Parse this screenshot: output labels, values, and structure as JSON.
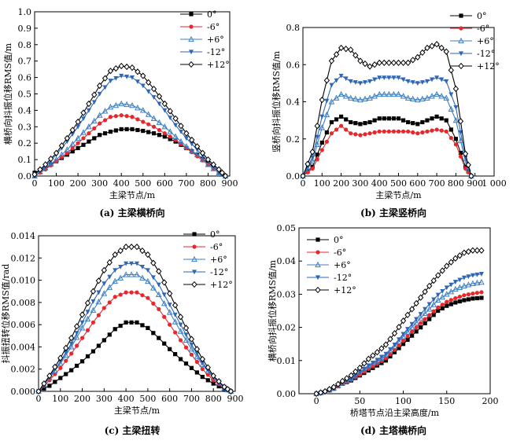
{
  "series_styles": [
    {
      "name": "0°",
      "color": "#000000",
      "marker": "square"
    },
    {
      "name": "-6°",
      "color": "#e8262b",
      "marker": "circle"
    },
    {
      "name": "+6°",
      "color": "#3d7fc4",
      "marker": "triangle-up"
    },
    {
      "name": "-12°",
      "color": "#2e66b8",
      "marker": "triangle-down"
    },
    {
      "name": "+12°",
      "color": "#000000",
      "marker": "diamond-open"
    }
  ],
  "chart_data": [
    {
      "id": "a",
      "type": "line",
      "caption": "(a) 主梁横桥向",
      "xlabel": "主梁节点/m",
      "ylabel": "横桥向抖振位移RMS值/m",
      "xlim": [
        0,
        900
      ],
      "ylim": [
        0,
        1.0
      ],
      "xticks": [
        0,
        100,
        200,
        300,
        400,
        500,
        600,
        700,
        800,
        900
      ],
      "yticks": [
        0.0,
        0.1,
        0.2,
        0.3,
        0.4,
        0.5,
        0.6,
        0.7,
        0.8,
        0.9,
        1.0
      ],
      "ytick_labels": [
        "0.0",
        "0.1",
        "0.2",
        "0.3",
        "0.4",
        "0.5",
        "0.6",
        "0.7",
        "0.8",
        "0.9",
        "1.0"
      ],
      "legend": [
        "0°",
        "-6°",
        "+6°",
        "-12°",
        "+12°"
      ],
      "series": [
        {
          "name": "0°",
          "x": [
            0,
            50,
            100,
            150,
            200,
            250,
            300,
            350,
            400,
            450,
            500,
            550,
            600,
            650,
            700,
            750,
            800,
            850,
            880
          ],
          "y": [
            0.02,
            0.05,
            0.09,
            0.13,
            0.17,
            0.21,
            0.25,
            0.27,
            0.285,
            0.285,
            0.275,
            0.26,
            0.24,
            0.21,
            0.17,
            0.13,
            0.08,
            0.03,
            0.0
          ]
        },
        {
          "name": "-6°",
          "x": [
            0,
            50,
            100,
            150,
            200,
            250,
            300,
            350,
            400,
            450,
            500,
            550,
            600,
            650,
            700,
            750,
            800,
            850,
            880
          ],
          "y": [
            0.0,
            0.04,
            0.09,
            0.14,
            0.2,
            0.26,
            0.32,
            0.36,
            0.37,
            0.36,
            0.33,
            0.3,
            0.26,
            0.22,
            0.17,
            0.12,
            0.07,
            0.02,
            0.0
          ]
        },
        {
          "name": "+6°",
          "x": [
            0,
            50,
            100,
            150,
            200,
            250,
            300,
            350,
            400,
            450,
            500,
            550,
            600,
            650,
            700,
            750,
            800,
            850,
            880
          ],
          "y": [
            0.0,
            0.05,
            0.1,
            0.16,
            0.23,
            0.3,
            0.37,
            0.42,
            0.44,
            0.43,
            0.4,
            0.35,
            0.3,
            0.24,
            0.18,
            0.13,
            0.07,
            0.02,
            0.0
          ]
        },
        {
          "name": "-12°",
          "x": [
            0,
            50,
            100,
            150,
            200,
            250,
            300,
            350,
            400,
            450,
            500,
            550,
            600,
            650,
            700,
            750,
            800,
            850,
            880
          ],
          "y": [
            0.01,
            0.06,
            0.13,
            0.21,
            0.3,
            0.4,
            0.5,
            0.58,
            0.61,
            0.6,
            0.55,
            0.48,
            0.4,
            0.31,
            0.23,
            0.16,
            0.09,
            0.03,
            0.0
          ]
        },
        {
          "name": "+12°",
          "x": [
            0,
            50,
            100,
            150,
            200,
            250,
            300,
            350,
            400,
            450,
            500,
            550,
            600,
            650,
            700,
            750,
            800,
            850,
            880
          ],
          "y": [
            0.01,
            0.07,
            0.14,
            0.23,
            0.33,
            0.44,
            0.55,
            0.64,
            0.67,
            0.66,
            0.61,
            0.53,
            0.44,
            0.35,
            0.26,
            0.18,
            0.1,
            0.04,
            0.0
          ]
        }
      ]
    },
    {
      "id": "b",
      "type": "line",
      "caption": "(b) 主梁竖桥向",
      "xlabel": "主梁节点/m",
      "ylabel": "竖桥向抖振位移RMS值/m",
      "xlim": [
        0,
        1000
      ],
      "ylim": [
        0,
        0.8
      ],
      "xticks": [
        0,
        100,
        200,
        300,
        400,
        500,
        600,
        700,
        800,
        900,
        1000
      ],
      "xtick_labels": [
        "0",
        "100",
        "200",
        "300",
        "400",
        "500",
        "600",
        "700",
        "800",
        "900",
        "1 000"
      ],
      "yticks": [
        0.0,
        0.2,
        0.4,
        0.6,
        0.8
      ],
      "ytick_labels": [
        "0.0",
        "0.2",
        "0.4",
        "0.6",
        "0.8"
      ],
      "legend": [
        "0°",
        "-6°",
        "+6°",
        "-12°",
        "+12°"
      ],
      "series": [
        {
          "name": "0°",
          "x": [
            0,
            50,
            100,
            150,
            200,
            250,
            300,
            350,
            400,
            450,
            500,
            550,
            600,
            650,
            700,
            750,
            800,
            850,
            880
          ],
          "y": [
            0.0,
            0.05,
            0.18,
            0.29,
            0.32,
            0.29,
            0.28,
            0.29,
            0.31,
            0.31,
            0.31,
            0.29,
            0.28,
            0.3,
            0.32,
            0.3,
            0.2,
            0.05,
            0.0
          ]
        },
        {
          "name": "-6°",
          "x": [
            0,
            50,
            100,
            150,
            200,
            250,
            300,
            350,
            400,
            450,
            500,
            550,
            600,
            650,
            700,
            750,
            800,
            850,
            880
          ],
          "y": [
            0.0,
            0.04,
            0.14,
            0.23,
            0.27,
            0.23,
            0.22,
            0.23,
            0.24,
            0.24,
            0.24,
            0.24,
            0.23,
            0.24,
            0.25,
            0.24,
            0.17,
            0.04,
            0.0
          ]
        },
        {
          "name": "+6°",
          "x": [
            0,
            50,
            100,
            150,
            200,
            250,
            300,
            350,
            400,
            450,
            500,
            550,
            600,
            650,
            700,
            750,
            800,
            850,
            880
          ],
          "y": [
            0.0,
            0.08,
            0.26,
            0.4,
            0.44,
            0.42,
            0.41,
            0.42,
            0.44,
            0.44,
            0.44,
            0.42,
            0.41,
            0.42,
            0.44,
            0.42,
            0.3,
            0.08,
            0.0
          ]
        },
        {
          "name": "-12°",
          "x": [
            0,
            50,
            100,
            150,
            200,
            250,
            300,
            350,
            400,
            450,
            500,
            550,
            600,
            650,
            700,
            750,
            800,
            850,
            880
          ],
          "y": [
            0.0,
            0.1,
            0.32,
            0.49,
            0.54,
            0.51,
            0.5,
            0.51,
            0.53,
            0.53,
            0.53,
            0.51,
            0.5,
            0.51,
            0.53,
            0.51,
            0.37,
            0.1,
            0.0
          ]
        },
        {
          "name": "+12°",
          "x": [
            0,
            50,
            100,
            150,
            200,
            250,
            300,
            350,
            400,
            450,
            500,
            550,
            600,
            650,
            700,
            750,
            800,
            850,
            880
          ],
          "y": [
            0.0,
            0.13,
            0.41,
            0.62,
            0.69,
            0.68,
            0.62,
            0.59,
            0.61,
            0.61,
            0.61,
            0.61,
            0.64,
            0.69,
            0.71,
            0.67,
            0.47,
            0.12,
            0.0
          ]
        }
      ]
    },
    {
      "id": "c",
      "type": "line",
      "caption": "(c) 主梁扭转",
      "xlabel": "主梁节点/m",
      "ylabel": "抖振扭转位移RMS值/rad",
      "xlim": [
        0,
        900
      ],
      "ylim": [
        0,
        0.014
      ],
      "xticks": [
        0,
        100,
        200,
        300,
        400,
        500,
        600,
        700,
        800,
        900
      ],
      "yticks": [
        0,
        0.002,
        0.004,
        0.006,
        0.008,
        0.01,
        0.012,
        0.014
      ],
      "ytick_labels": [
        "0.000",
        "0.002",
        "0.004",
        "0.006",
        "0.008",
        "0.010",
        "0.012",
        "0.014"
      ],
      "legend": [
        "0°",
        "-6°",
        "+6°",
        "-12°",
        "+12°"
      ],
      "series": [
        {
          "name": "0°",
          "x": [
            0,
            50,
            100,
            150,
            200,
            250,
            300,
            350,
            400,
            450,
            500,
            550,
            600,
            650,
            700,
            750,
            800,
            850,
            880
          ],
          "y": [
            0.0,
            0.0005,
            0.0012,
            0.0019,
            0.0027,
            0.0036,
            0.0046,
            0.0056,
            0.0062,
            0.0062,
            0.0057,
            0.0048,
            0.0038,
            0.0029,
            0.0021,
            0.0013,
            0.0007,
            0.0002,
            0.0
          ]
        },
        {
          "name": "-6°",
          "x": [
            0,
            50,
            100,
            150,
            200,
            250,
            300,
            350,
            400,
            450,
            500,
            550,
            600,
            650,
            700,
            750,
            800,
            850,
            880
          ],
          "y": [
            0.0,
            0.001,
            0.0021,
            0.0034,
            0.0048,
            0.0062,
            0.0075,
            0.0085,
            0.0089,
            0.0089,
            0.0084,
            0.0074,
            0.006,
            0.0046,
            0.0033,
            0.002,
            0.001,
            0.0003,
            0.0
          ]
        },
        {
          "name": "+6°",
          "x": [
            0,
            50,
            100,
            150,
            200,
            250,
            300,
            350,
            400,
            450,
            500,
            550,
            600,
            650,
            700,
            750,
            800,
            850,
            880
          ],
          "y": [
            0.0,
            0.0012,
            0.0025,
            0.004,
            0.0057,
            0.0073,
            0.0088,
            0.0099,
            0.0105,
            0.0105,
            0.0099,
            0.0087,
            0.0071,
            0.0054,
            0.0038,
            0.0024,
            0.0012,
            0.0003,
            0.0
          ]
        },
        {
          "name": "-12°",
          "x": [
            0,
            50,
            100,
            150,
            200,
            250,
            300,
            350,
            400,
            450,
            500,
            550,
            600,
            650,
            700,
            750,
            800,
            850,
            880
          ],
          "y": [
            0.0,
            0.0013,
            0.0027,
            0.0043,
            0.0062,
            0.0081,
            0.0097,
            0.0109,
            0.0115,
            0.0115,
            0.0109,
            0.0096,
            0.0078,
            0.006,
            0.0042,
            0.0026,
            0.0013,
            0.0004,
            0.0
          ]
        },
        {
          "name": "+12°",
          "x": [
            0,
            50,
            100,
            150,
            200,
            250,
            300,
            350,
            400,
            450,
            500,
            550,
            600,
            650,
            700,
            750,
            800,
            850,
            880
          ],
          "y": [
            0.0,
            0.0014,
            0.003,
            0.0048,
            0.0069,
            0.009,
            0.0109,
            0.0123,
            0.013,
            0.013,
            0.0123,
            0.0108,
            0.0088,
            0.0067,
            0.0047,
            0.0029,
            0.0014,
            0.0004,
            0.0
          ]
        }
      ]
    },
    {
      "id": "d",
      "type": "line",
      "caption": "(d) 主塔横桥向",
      "xlabel": "桥塔节点沿主梁高度/m",
      "ylabel": "横桥向抖振位移RMS值/m",
      "xlim": [
        -20,
        200
      ],
      "ylim": [
        0,
        0.05
      ],
      "xticks": [
        0,
        50,
        100,
        150,
        200
      ],
      "yticks": [
        0,
        0.01,
        0.02,
        0.03,
        0.04,
        0.05
      ],
      "ytick_labels": [
        "0.00",
        "0.01",
        "0.02",
        "0.03",
        "0.04",
        "0.05"
      ],
      "legend": [
        "0°",
        "-6°",
        "+6°",
        "-12°",
        "+12°"
      ],
      "series": [
        {
          "name": "0°",
          "x": [
            0,
            10,
            20,
            30,
            40,
            50,
            60,
            70,
            80,
            90,
            100,
            110,
            120,
            130,
            140,
            150,
            160,
            170,
            180,
            190
          ],
          "y": [
            0.0,
            0.0005,
            0.0015,
            0.003,
            0.004,
            0.0055,
            0.007,
            0.0085,
            0.01,
            0.0125,
            0.015,
            0.0175,
            0.02,
            0.0225,
            0.025,
            0.0265,
            0.0275,
            0.0282,
            0.0287,
            0.0289
          ]
        },
        {
          "name": "-6°",
          "x": [
            0,
            10,
            20,
            30,
            40,
            50,
            60,
            70,
            80,
            90,
            100,
            110,
            120,
            130,
            140,
            150,
            160,
            170,
            180,
            190
          ],
          "y": [
            0.0,
            0.0005,
            0.0015,
            0.003,
            0.0042,
            0.0058,
            0.0075,
            0.009,
            0.0107,
            0.0132,
            0.016,
            0.0187,
            0.0213,
            0.0237,
            0.026,
            0.0277,
            0.0288,
            0.0297,
            0.0302,
            0.0306
          ]
        },
        {
          "name": "+6°",
          "x": [
            0,
            10,
            20,
            30,
            40,
            50,
            60,
            70,
            80,
            90,
            100,
            110,
            120,
            130,
            140,
            150,
            160,
            170,
            180,
            190
          ],
          "y": [
            0.0,
            0.0006,
            0.0017,
            0.0032,
            0.0045,
            0.0062,
            0.0082,
            0.0098,
            0.0115,
            0.0142,
            0.0172,
            0.02,
            0.0228,
            0.0255,
            0.0282,
            0.03,
            0.0315,
            0.0325,
            0.0332,
            0.0336
          ]
        },
        {
          "name": "-12°",
          "x": [
            0,
            10,
            20,
            30,
            40,
            50,
            60,
            70,
            80,
            90,
            100,
            110,
            120,
            130,
            140,
            150,
            160,
            170,
            180,
            190
          ],
          "y": [
            0.0,
            0.0006,
            0.0018,
            0.0033,
            0.0047,
            0.0065,
            0.0085,
            0.0102,
            0.012,
            0.0148,
            0.018,
            0.021,
            0.024,
            0.027,
            0.0298,
            0.032,
            0.0337,
            0.035,
            0.0357,
            0.0361
          ]
        },
        {
          "name": "+12°",
          "x": [
            0,
            10,
            20,
            30,
            40,
            50,
            60,
            70,
            80,
            90,
            100,
            110,
            120,
            130,
            140,
            150,
            160,
            170,
            180,
            190
          ],
          "y": [
            0.0,
            0.0007,
            0.002,
            0.0038,
            0.0055,
            0.0078,
            0.0105,
            0.0125,
            0.0148,
            0.0182,
            0.022,
            0.0255,
            0.029,
            0.0325,
            0.0357,
            0.0385,
            0.0408,
            0.0425,
            0.0432,
            0.0432
          ]
        }
      ]
    }
  ]
}
